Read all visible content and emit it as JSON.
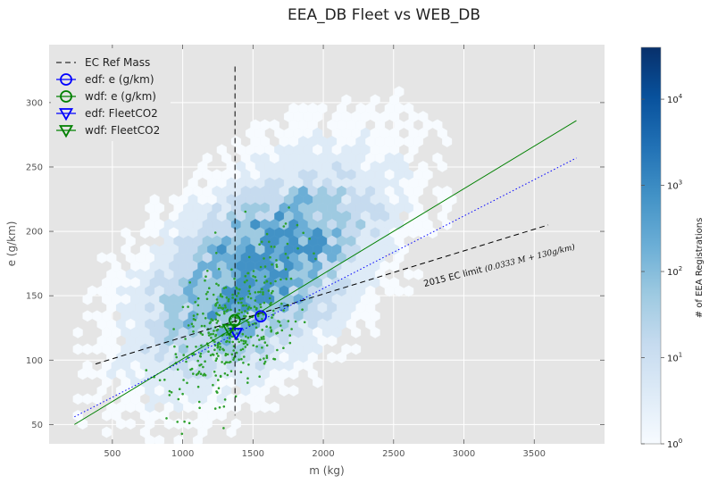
{
  "chart_data": {
    "type": "scatter",
    "title": "EEA_DB Fleet vs WEB_DB",
    "xlabel": "m (kg)",
    "ylabel": "e (g/km)",
    "xlim": [
      50,
      4000
    ],
    "ylim": [
      35,
      345
    ],
    "x_ticks": [
      500,
      1000,
      1500,
      2000,
      2500,
      3000,
      3500
    ],
    "y_ticks": [
      50,
      100,
      150,
      200,
      250,
      300
    ],
    "grid": true,
    "legend_position": "top-left",
    "hexbin": {
      "description_scale": "log",
      "colorbar_label": "# of EEA Registrations",
      "colorbar_range": [
        1,
        40000
      ],
      "colorbar_ticks": [
        {
          "base": "10",
          "exp": "0",
          "value": 1
        },
        {
          "base": "10",
          "exp": "1",
          "value": 10
        },
        {
          "base": "10",
          "exp": "2",
          "value": 100
        },
        {
          "base": "10",
          "exp": "3",
          "value": 1000
        },
        {
          "base": "10",
          "exp": "4",
          "value": 10000
        }
      ],
      "center": [
        1550,
        170
      ],
      "spread_x": 500,
      "spread_y": 50,
      "correlation": 0.55,
      "color_light": "#f7fbff",
      "color_dark": "#08306b"
    },
    "series": [
      {
        "name": "EC Ref Mass",
        "kind": "vline",
        "x": 1372,
        "y_range": [
          57,
          328
        ],
        "color": "#000000",
        "dash": "dashed"
      },
      {
        "name": "edf: e (g/km)",
        "kind": "marker-circle",
        "x": 1555,
        "y": 134,
        "color": "#0000ff"
      },
      {
        "name": "wdf: e (g/km)",
        "kind": "marker-circle",
        "x": 1370,
        "y": 131,
        "color": "#008000"
      },
      {
        "name": "edf: FleetCO2",
        "kind": "marker-triangle",
        "x": 1380,
        "y": 121,
        "color": "#0000ff"
      },
      {
        "name": "wdf: FleetCO2",
        "kind": "marker-triangle",
        "x": 1330,
        "y": 124,
        "color": "#008000"
      }
    ],
    "lines": [
      {
        "label": "2015 EC limit",
        "x": [
          380,
          3600
        ],
        "y": [
          97,
          205
        ],
        "color": "#000000",
        "dash": "dashed"
      },
      {
        "x": [
          230,
          3800
        ],
        "y": [
          56,
          257
        ],
        "color": "#0000ff",
        "dash": "dotted"
      },
      {
        "x": [
          230,
          3800
        ],
        "y": [
          50,
          286
        ],
        "color": "#008000",
        "dash": "solid"
      }
    ],
    "annotations": [
      {
        "text": "2015 EC limit ",
        "math": "(0.0333 M + 130g/km)",
        "x": 2720,
        "y": 157,
        "angle_deg": -14
      }
    ],
    "green_points": {
      "name": "wdf sample",
      "color": "#2ca02c",
      "center": [
        1380,
        128
      ],
      "spread_x": 230,
      "spread_y": 32,
      "count": 420
    }
  }
}
